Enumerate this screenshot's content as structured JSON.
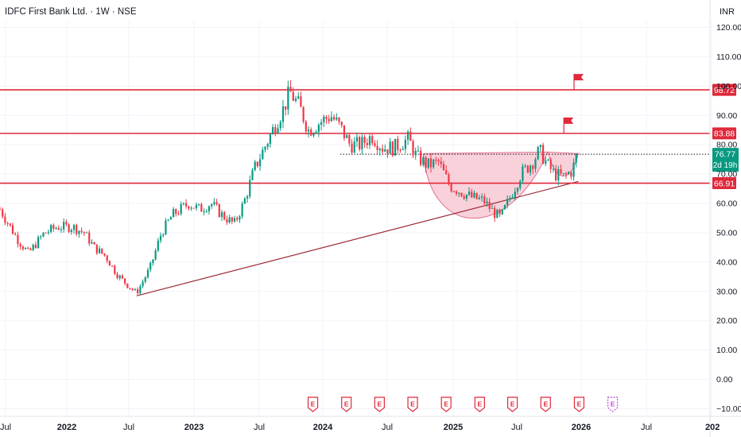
{
  "header": {
    "symbol_title": "IDFC First Bank Ltd. · 1W · NSE",
    "currency": "INR"
  },
  "colors": {
    "up": "#089981",
    "down": "#f23645",
    "level_line": "#e0293b",
    "trendline": "#9c2a35",
    "cup_fill": "#f7c1cf",
    "axis_text": "#131722",
    "grid": "#f0f3fa",
    "earnings": "#e0293b",
    "earnings_last": "#b74ad9"
  },
  "chart_data": {
    "type": "candlestick",
    "x_ticks": [
      "Jul",
      "2022",
      "Jul",
      "2023",
      "Jul",
      "2024",
      "Jul",
      "2025",
      "Jul",
      "2026",
      "Jul",
      "202"
    ],
    "x_range": [
      "2021-06-15",
      "2027-01-05"
    ],
    "ylim": [
      -12,
      124
    ],
    "y_ticks": [
      "120.00",
      "110.00",
      "100.00",
      "90.00",
      "80.00",
      "70.00",
      "60.00",
      "50.00",
      "40.00",
      "30.00",
      "20.00",
      "10.00",
      "0.00",
      "−10.00"
    ],
    "y_tick_values": [
      120,
      110,
      100,
      90,
      80,
      70,
      60,
      50,
      40,
      30,
      20,
      10,
      0,
      -10
    ],
    "price_levels": [
      {
        "label": "98.72",
        "value": 98.72
      },
      {
        "label": "83.88",
        "value": 83.88
      },
      {
        "label": "66.91",
        "value": 66.91
      }
    ],
    "last_price": {
      "price": "76.77",
      "countdown": "2d 19h",
      "value": 76.77
    },
    "trendline": {
      "start": [
        "2022-06-25",
        28.5
      ],
      "end": [
        "2025-10-20",
        67.5
      ]
    },
    "flags": [
      {
        "date": "2025-10-08",
        "value": 98.72
      },
      {
        "date": "2025-09-10",
        "value": 83.88
      }
    ],
    "cup_and_handle": {
      "cup_rim": [
        "2024-08-20",
        77.0,
        "2025-07-28",
        77.5
      ],
      "cup_bottom": [
        "2025-03-01",
        57.0
      ],
      "handle_end": [
        "2025-10-20",
        77.0
      ]
    },
    "earnings_dates": [
      "2023-10-22",
      "2024-01-22",
      "2024-04-22",
      "2024-07-22",
      "2024-10-22",
      "2025-01-22",
      "2025-04-22",
      "2025-07-22",
      "2025-10-22",
      "2026-01-22"
    ],
    "price_path": [
      [
        "2021-06-15",
        58
      ],
      [
        "2021-08-01",
        48
      ],
      [
        "2021-09-01",
        43
      ],
      [
        "2021-10-15",
        50
      ],
      [
        "2021-11-20",
        52
      ],
      [
        "2022-01-01",
        52
      ],
      [
        "2022-02-01",
        50
      ],
      [
        "2022-03-01",
        45
      ],
      [
        "2022-04-01",
        42
      ],
      [
        "2022-05-01",
        36
      ],
      [
        "2022-06-01",
        32
      ],
      [
        "2022-06-25",
        29.5
      ],
      [
        "2022-08-01",
        38
      ],
      [
        "2022-09-01",
        50
      ],
      [
        "2022-10-01",
        56
      ],
      [
        "2022-11-15",
        60
      ],
      [
        "2022-12-15",
        58
      ],
      [
        "2023-01-15",
        60
      ],
      [
        "2023-02-15",
        56
      ],
      [
        "2023-03-20",
        53
      ],
      [
        "2023-04-15",
        60
      ],
      [
        "2023-05-15",
        72
      ],
      [
        "2023-06-15",
        80
      ],
      [
        "2023-07-15",
        88
      ],
      [
        "2023-08-01",
        92
      ],
      [
        "2023-08-20",
        98
      ],
      [
        "2023-09-15",
        93
      ],
      [
        "2023-10-10",
        85
      ],
      [
        "2023-11-15",
        88
      ],
      [
        "2023-12-10",
        90
      ],
      [
        "2024-01-05",
        86
      ],
      [
        "2024-02-01",
        80
      ],
      [
        "2024-03-01",
        80
      ],
      [
        "2024-04-01",
        83
      ],
      [
        "2024-05-01",
        79
      ],
      [
        "2024-06-01",
        79
      ],
      [
        "2024-07-10",
        82
      ],
      [
        "2024-08-01",
        76
      ],
      [
        "2024-09-01",
        73
      ],
      [
        "2024-10-01",
        74
      ],
      [
        "2024-11-01",
        66
      ],
      [
        "2024-12-01",
        64
      ],
      [
        "2025-01-01",
        62
      ],
      [
        "2025-02-01",
        61
      ],
      [
        "2025-03-01",
        57
      ],
      [
        "2025-03-20",
        55
      ],
      [
        "2025-04-15",
        62
      ],
      [
        "2025-05-15",
        70
      ],
      [
        "2025-06-15",
        74
      ],
      [
        "2025-07-05",
        78
      ],
      [
        "2025-07-28",
        73
      ],
      [
        "2025-08-15",
        70
      ],
      [
        "2025-09-10",
        69
      ],
      [
        "2025-10-01",
        71
      ],
      [
        "2025-10-20",
        76.77
      ]
    ]
  }
}
